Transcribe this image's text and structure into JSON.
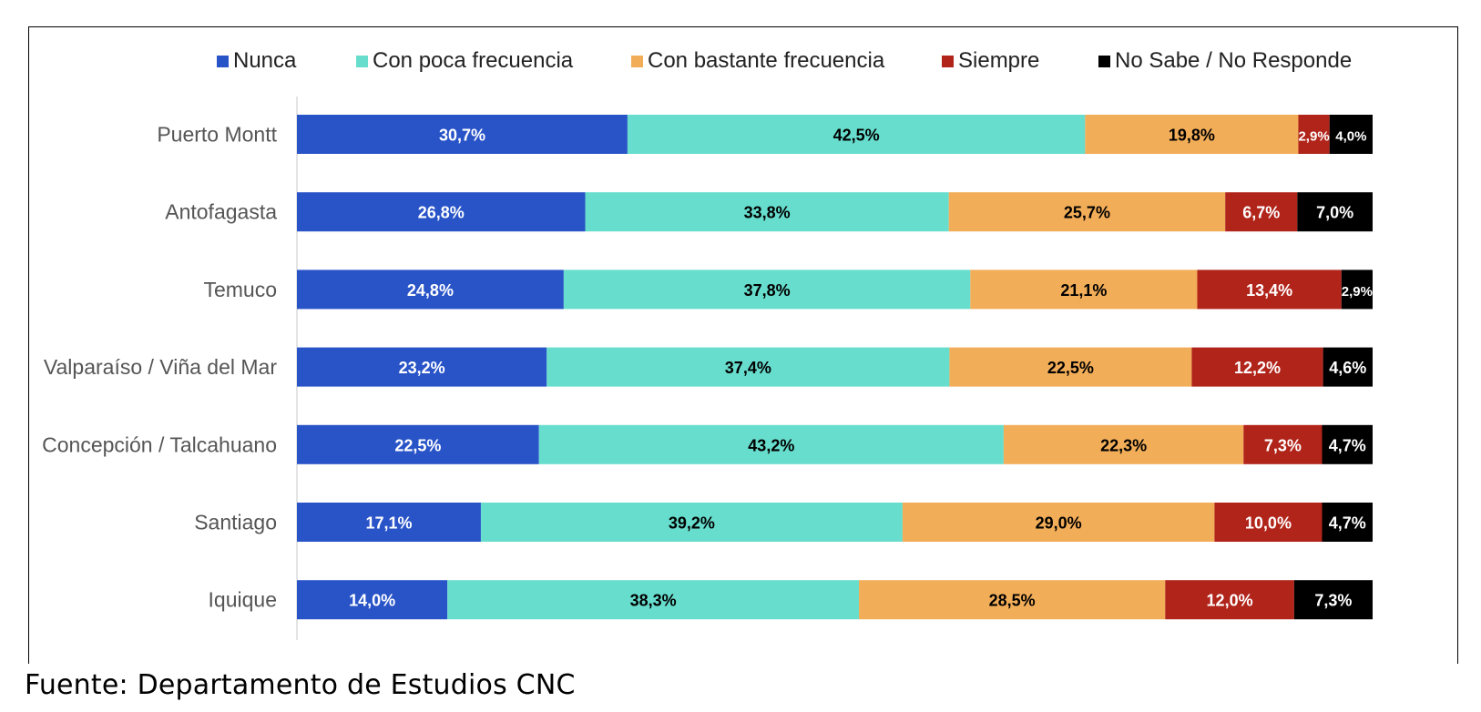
{
  "source": "Fuente: Departamento de Estudios CNC",
  "chart_data": {
    "type": "bar",
    "orientation": "horizontal",
    "stacked": true,
    "percent_stacked": true,
    "legend_position": "top",
    "grid": false,
    "categories": [
      "Puerto Montt",
      "Antofagasta",
      "Temuco",
      "Valparaíso / Viña del Mar",
      "Concepción / Talcahuano",
      "Santiago",
      "Iquique"
    ],
    "series": [
      {
        "name": "Nunca",
        "color": "#2954C8",
        "label_color": "#ffffff",
        "values": [
          30.7,
          26.8,
          24.8,
          23.2,
          22.5,
          17.1,
          14.0
        ],
        "labels": [
          "30,7%",
          "26,8%",
          "24,8%",
          "23,2%",
          "22,5%",
          "17,1%",
          "14,0%"
        ]
      },
      {
        "name": "Con poca frecuencia",
        "color": "#67DDCD",
        "label_color": "#000000",
        "values": [
          42.5,
          33.8,
          37.8,
          37.4,
          43.2,
          39.2,
          38.3
        ],
        "labels": [
          "42,5%",
          "33,8%",
          "37,8%",
          "37,4%",
          "43,2%",
          "39,2%",
          "38,3%"
        ]
      },
      {
        "name": "Con bastante frecuencia",
        "color": "#F2AD58",
        "label_color": "#000000",
        "values": [
          19.8,
          25.7,
          21.1,
          22.5,
          22.3,
          29.0,
          28.5
        ],
        "labels": [
          "19,8%",
          "25,7%",
          "21,1%",
          "22,5%",
          "22,3%",
          "29,0%",
          "28,5%"
        ]
      },
      {
        "name": "Siempre",
        "color": "#B1241A",
        "label_color": "#ffffff",
        "values": [
          2.9,
          6.7,
          13.4,
          12.2,
          7.3,
          10.0,
          12.0
        ],
        "labels": [
          "2,9%",
          "6,7%",
          "13,4%",
          "12,2%",
          "7,3%",
          "10,0%",
          "12,0%"
        ]
      },
      {
        "name": "No Sabe / No Responde",
        "color": "#000000",
        "label_color": "#ffffff",
        "values": [
          4.0,
          7.0,
          2.9,
          4.6,
          4.7,
          4.7,
          7.3
        ],
        "labels": [
          "4,0%",
          "7,0%",
          "2,9%",
          "4,6%",
          "4,7%",
          "4,7%",
          "7,3%"
        ]
      }
    ],
    "xlim": [
      0,
      100
    ]
  }
}
